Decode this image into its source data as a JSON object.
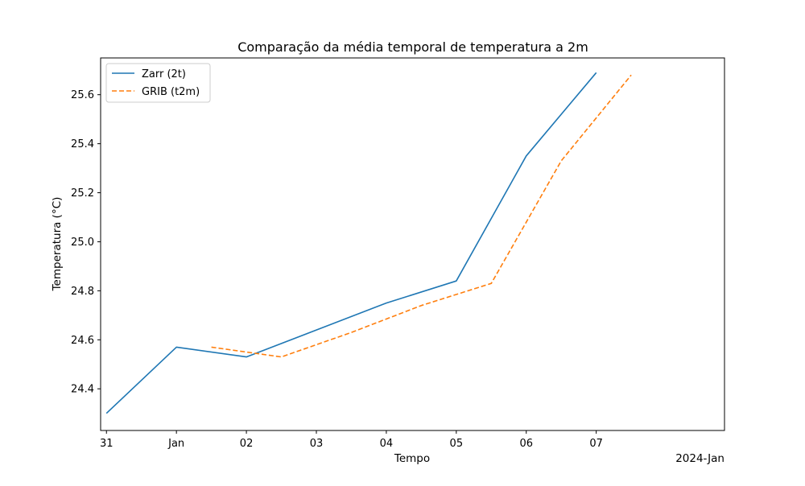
{
  "chart_data": {
    "type": "line",
    "title": "Comparação da média temporal de temperatura a 2m",
    "xlabel": "Tempo",
    "ylabel": "Temperatura (°C)",
    "x_offset_label": "2024-Jan",
    "xlim": [
      "2023-12-30T22:00",
      "2024-01-08T20:00"
    ],
    "ylim": [
      24.23,
      25.75
    ],
    "x_ticks": [
      {
        "date": "2023-12-31",
        "label": "31"
      },
      {
        "date": "2024-01-01",
        "label": "Jan"
      },
      {
        "date": "2024-01-02",
        "label": "02"
      },
      {
        "date": "2024-01-03",
        "label": "03"
      },
      {
        "date": "2024-01-04",
        "label": "04"
      },
      {
        "date": "2024-01-05",
        "label": "05"
      },
      {
        "date": "2024-01-06",
        "label": "06"
      },
      {
        "date": "2024-01-07",
        "label": "07"
      }
    ],
    "y_ticks": [
      24.4,
      24.6,
      24.8,
      25.0,
      25.2,
      25.4,
      25.6
    ],
    "y_tick_labels": [
      "24.4",
      "24.6",
      "24.8",
      "25.0",
      "25.2",
      "25.4",
      "25.6"
    ],
    "grid": false,
    "legend_position": "top-left",
    "series": [
      {
        "name": "Zarr (2t)",
        "color": "#1f77b4",
        "style": "solid",
        "x": [
          "2023-12-31",
          "2024-01-01",
          "2024-01-02",
          "2024-01-03",
          "2024-01-04",
          "2024-01-05",
          "2024-01-06",
          "2024-01-07"
        ],
        "y": [
          24.3,
          24.57,
          24.53,
          24.64,
          24.75,
          24.84,
          25.35,
          25.69
        ]
      },
      {
        "name": "GRIB (t2m)",
        "color": "#ff7f0e",
        "style": "dashed",
        "x": [
          "2024-01-01T12:00",
          "2024-01-02T12:00",
          "2024-01-03T12:00",
          "2024-01-04T12:00",
          "2024-01-05T12:00",
          "2024-01-06T12:00",
          "2024-01-07T12:00"
        ],
        "y": [
          24.57,
          24.53,
          24.63,
          24.74,
          24.83,
          25.33,
          25.68
        ]
      }
    ]
  }
}
